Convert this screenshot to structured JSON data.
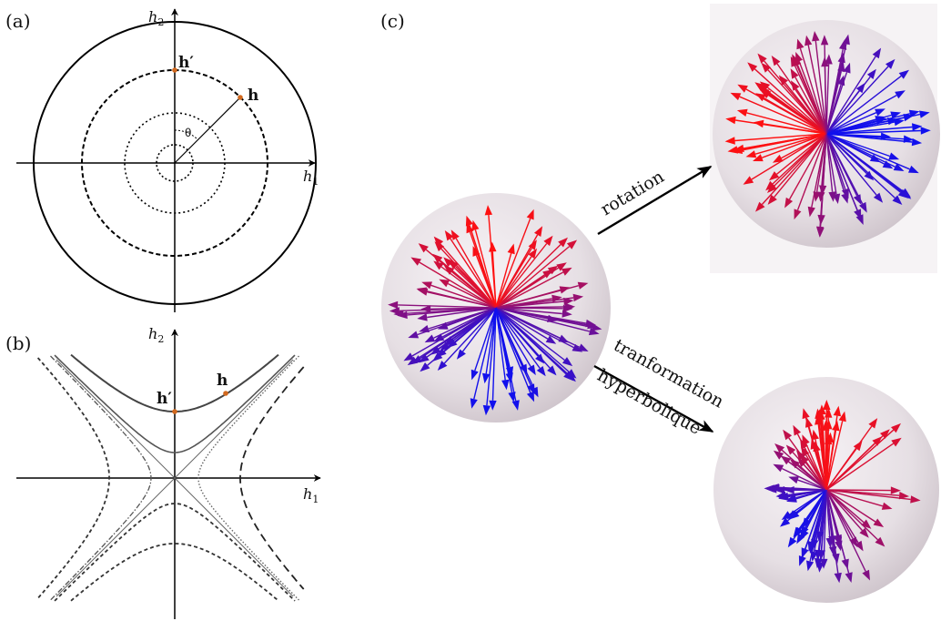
{
  "panels": {
    "a": {
      "label": "(a)",
      "x_axis": "h",
      "x_axis_sub": "1",
      "y_axis": "h",
      "y_axis_sub": "2",
      "point_h": "h",
      "point_h_prime": "h′",
      "angle": "θ"
    },
    "b": {
      "label": "(b)",
      "x_axis": "h",
      "x_axis_sub": "1",
      "y_axis": "h",
      "y_axis_sub": "2",
      "point_h": "h",
      "point_h_prime": "h′"
    },
    "c": {
      "label": "(c)",
      "arrow_top_label": "rotation",
      "arrow_bottom_label_1": "tranformation",
      "arrow_bottom_label_2": "hyperbolique"
    }
  },
  "colors": {
    "red": "#ff1010",
    "blue": "#1010ee",
    "point": "#d2691e",
    "axis": "#000000"
  }
}
